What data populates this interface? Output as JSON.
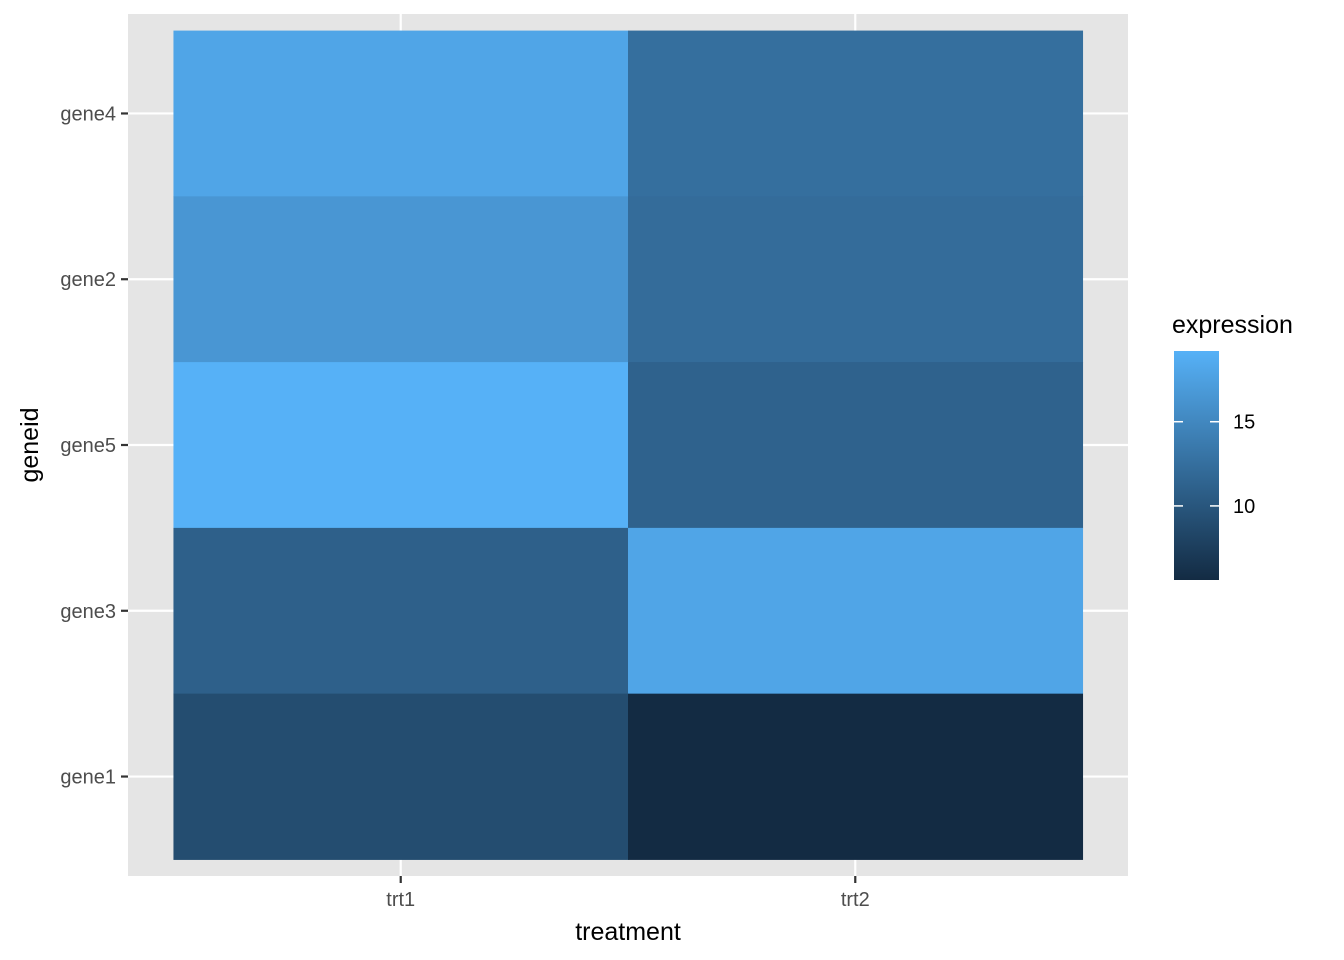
{
  "chart_data": {
    "type": "heatmap",
    "title": "",
    "xlabel": "treatment",
    "ylabel": "geneid",
    "x_categories": [
      "trt1",
      "trt2"
    ],
    "y_categories": [
      "gene1",
      "gene3",
      "gene5",
      "gene2",
      "gene4"
    ],
    "cells": [
      {
        "x": "trt1",
        "y": "gene4",
        "value": 18
      },
      {
        "x": "trt2",
        "y": "gene4",
        "value": 12.5
      },
      {
        "x": "trt1",
        "y": "gene2",
        "value": 16.5
      },
      {
        "x": "trt2",
        "y": "gene2",
        "value": 12.2
      },
      {
        "x": "trt1",
        "y": "gene5",
        "value": 19.2
      },
      {
        "x": "trt2",
        "y": "gene5",
        "value": 11.2
      },
      {
        "x": "trt1",
        "y": "gene3",
        "value": 11
      },
      {
        "x": "trt2",
        "y": "gene3",
        "value": 18
      },
      {
        "x": "trt1",
        "y": "gene1",
        "value": 9
      },
      {
        "x": "trt2",
        "y": "gene1",
        "value": 5.6
      }
    ],
    "legend": {
      "title": "expression",
      "placement": "right",
      "range": [
        5.6,
        19.2
      ],
      "breaks": [
        10,
        15
      ],
      "low_color": "#132b43",
      "high_color": "#56b1f7"
    },
    "grid": true,
    "panel_background": "#e5e5e5",
    "grid_color": "#ffffff"
  }
}
